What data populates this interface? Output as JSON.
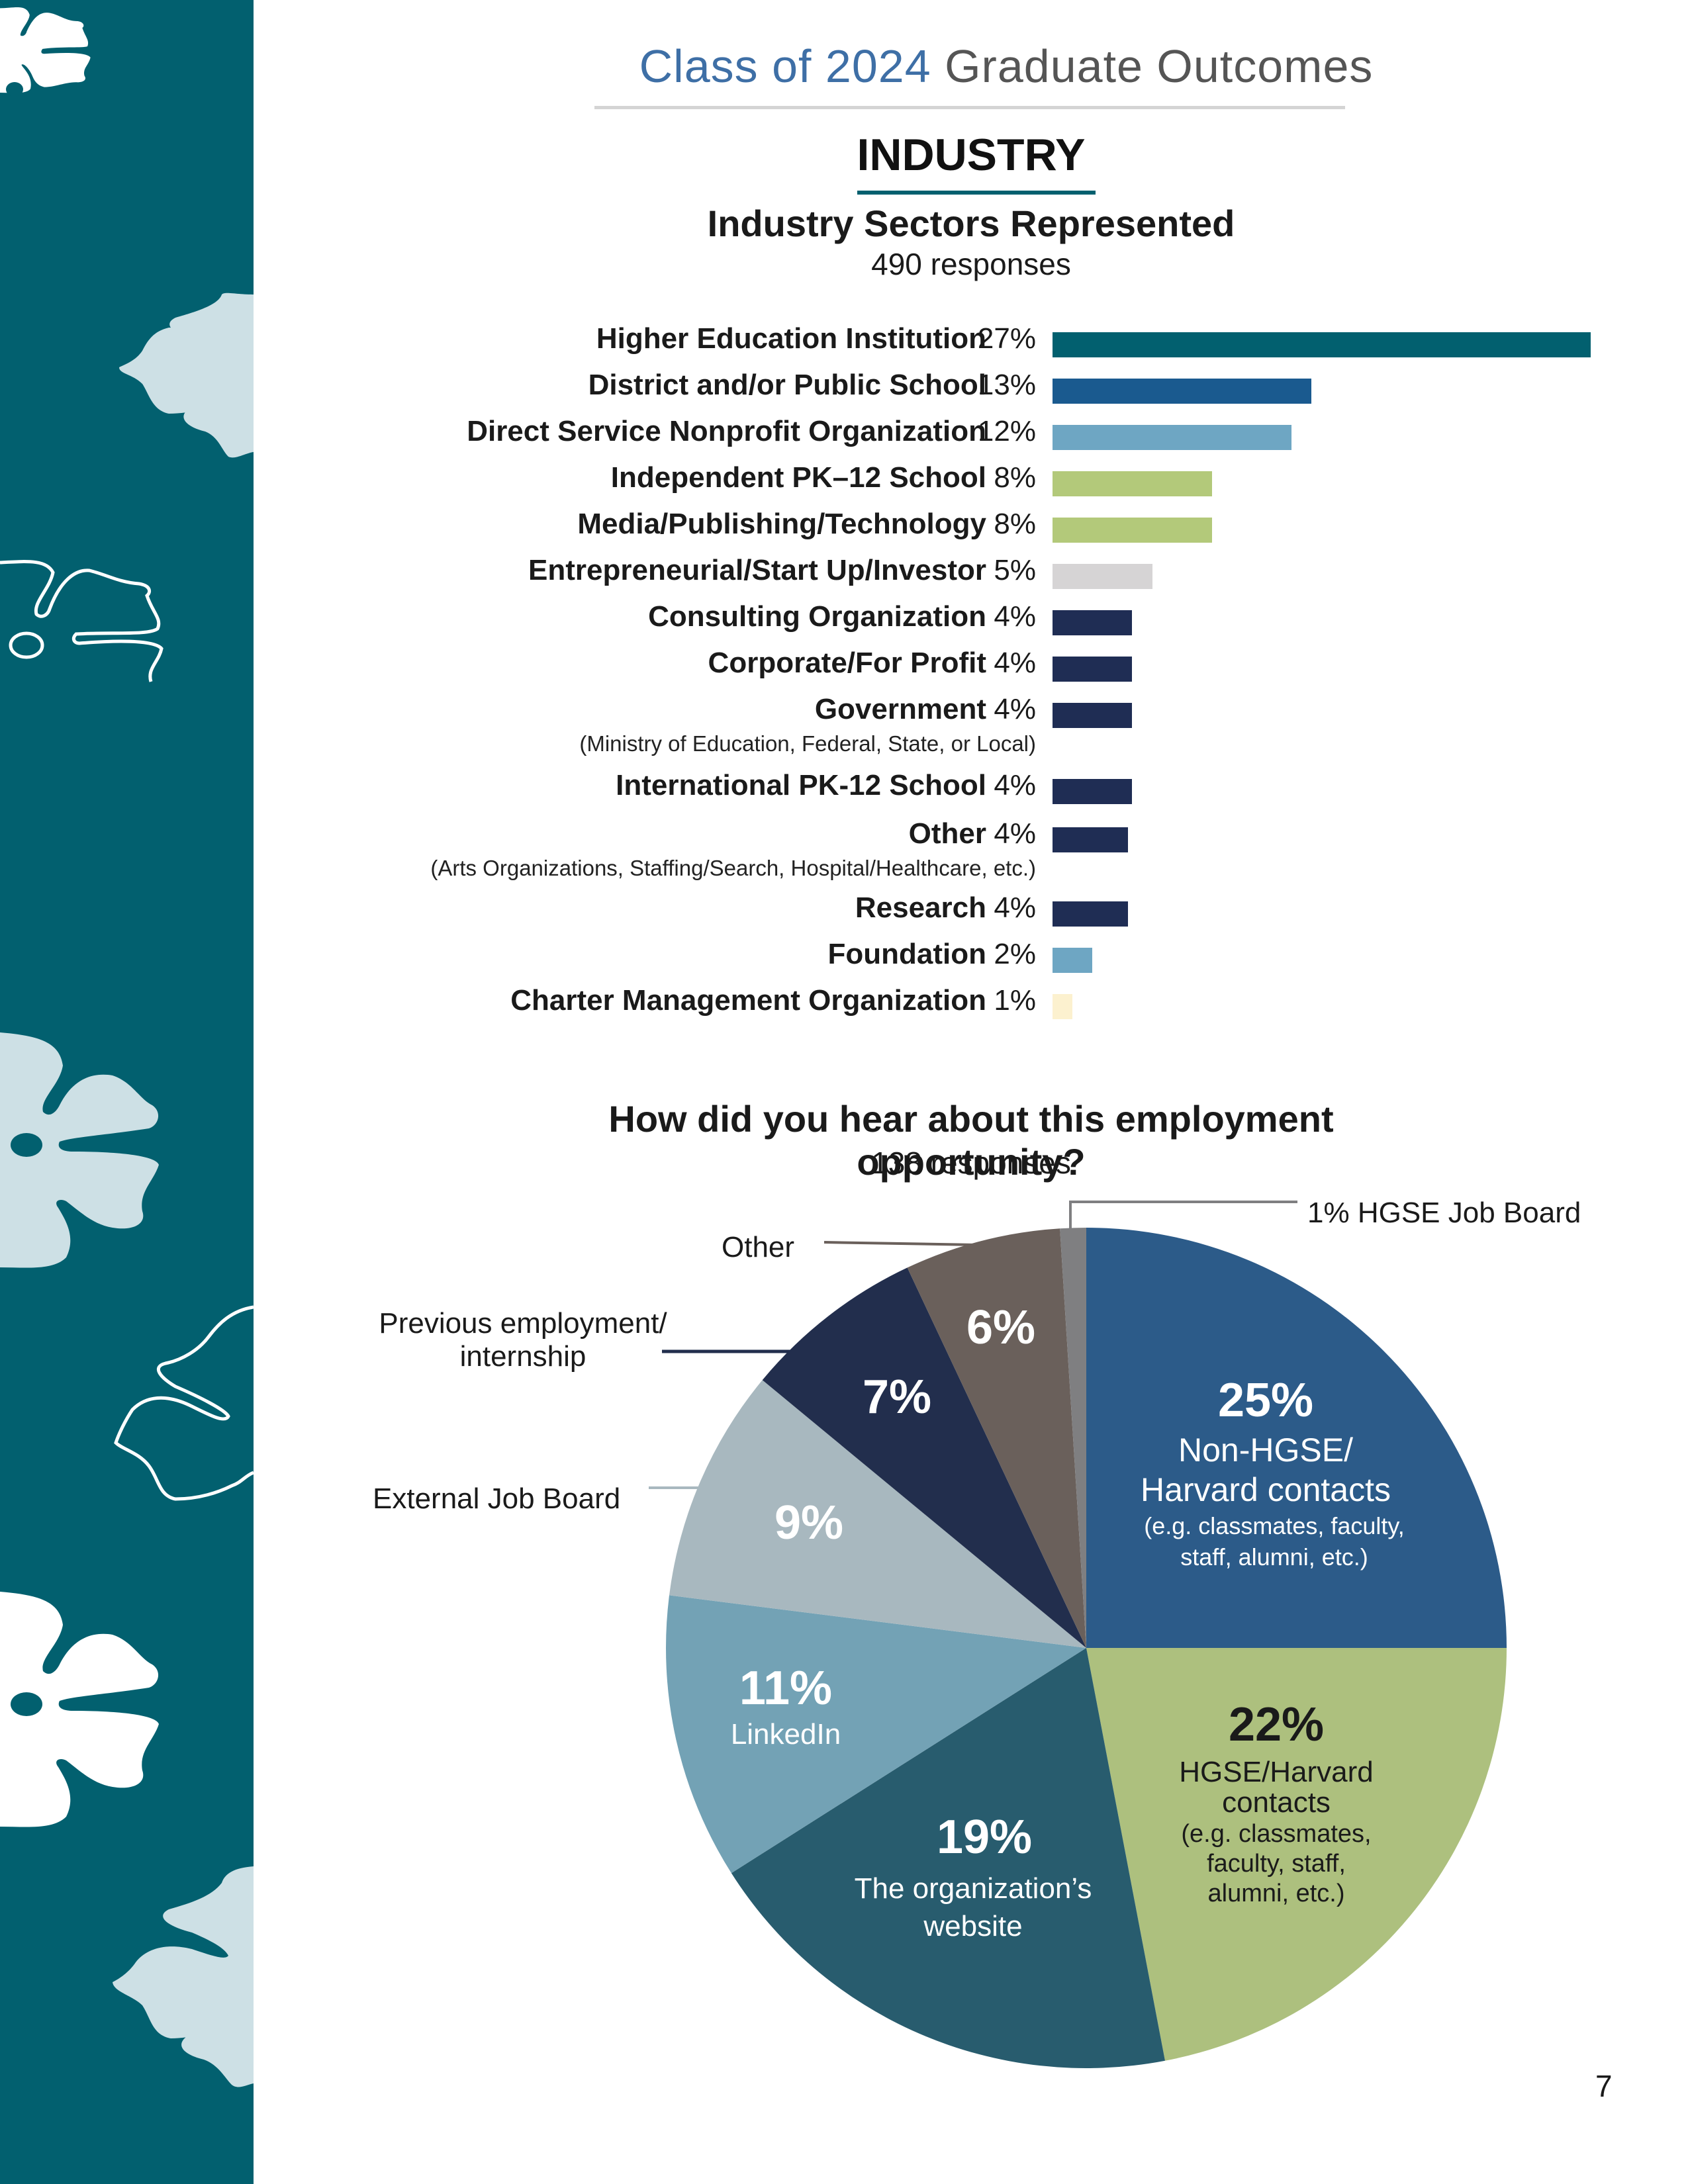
{
  "header": {
    "title_light": "Class of 2024",
    "title_dark": "Graduate Outcomes"
  },
  "section": {
    "title": "INDUSTRY"
  },
  "page_number": "7",
  "colors": {
    "teal": "#02606f",
    "light_blue_decor": "#cde0e5",
    "header_blue": "#3e6fa6"
  },
  "chart_data": [
    {
      "type": "bar",
      "orientation": "horizontal",
      "title": "Industry Sectors Represented",
      "subtitle": "490 responses",
      "xlabel": "",
      "ylabel": "",
      "xlim": [
        0,
        27
      ],
      "grid": false,
      "categories": [
        {
          "label": "Higher Education Institution",
          "value": 27,
          "display": "27%",
          "color": "#02606f",
          "note": ""
        },
        {
          "label": "District and/or Public School",
          "value": 13,
          "display": "13%",
          "color": "#1a5a8f",
          "note": ""
        },
        {
          "label": "Direct Service Nonprofit Organization",
          "value": 12,
          "display": "12%",
          "color": "#6ea6c3",
          "note": ""
        },
        {
          "label": "Independent PK–12 School",
          "value": 8,
          "display": "8%",
          "color": "#b3c97a",
          "note": ""
        },
        {
          "label": "Media/Publishing/Technology",
          "value": 8,
          "display": "8%",
          "color": "#b3c97a",
          "note": ""
        },
        {
          "label": "Entrepreneurial/Start Up/Investor",
          "value": 5,
          "display": "5%",
          "color": "#d6d4d5",
          "note": ""
        },
        {
          "label": "Consulting Organization",
          "value": 4,
          "display": "4%",
          "color": "#1f2d54",
          "note": ""
        },
        {
          "label": "Corporate/For Profit",
          "value": 4,
          "display": "4%",
          "color": "#1f2d54",
          "note": ""
        },
        {
          "label": "Government",
          "value": 4,
          "display": "4%",
          "color": "#1f2d54",
          "note": "(Ministry of Education, Federal, State, or Local)"
        },
        {
          "label": "International PK-12 School",
          "value": 4,
          "display": "4%",
          "color": "#1f2d54",
          "note": ""
        },
        {
          "label": "Other",
          "value": 3.8,
          "display": "4%",
          "color": "#1f2d54",
          "note": "(Arts Organizations, Staffing/Search, Hospital/Healthcare, etc.)"
        },
        {
          "label": "Research",
          "value": 3.8,
          "display": "4%",
          "color": "#1f2d54",
          "note": ""
        },
        {
          "label": "Foundation",
          "value": 2,
          "display": "2%",
          "color": "#6ea6c3",
          "note": ""
        },
        {
          "label": "Charter Management Organization",
          "value": 1,
          "display": "1%",
          "color": "#fcf1cf",
          "note": ""
        }
      ]
    },
    {
      "type": "pie",
      "title": "How did you hear about this employment opportunity?",
      "subtitle": "138 responses",
      "start_angle": "12 o'clock, clockwise",
      "slices": [
        {
          "label": "Non-HGSE/ Harvard contacts",
          "detail": "(e.g. classmates, faculty, staff, alumni, etc.)",
          "value": 25,
          "display": "25%",
          "color": "#2c5b89",
          "text_color": "#ffffff"
        },
        {
          "label": "HGSE/Harvard contacts",
          "detail": "(e.g. classmates, faculty, staff, alumni, etc.)",
          "value": 22,
          "display": "22%",
          "color": "#adc07e",
          "text_color": "#1a1a1a"
        },
        {
          "label": "The organization’s website",
          "detail": "",
          "value": 19,
          "display": "19%",
          "color": "#285c6e",
          "text_color": "#ffffff"
        },
        {
          "label": "LinkedIn",
          "detail": "",
          "value": 11,
          "display": "11%",
          "color": "#73a2b5",
          "text_color": "#ffffff"
        },
        {
          "label": "External Job Board",
          "detail": "",
          "value": 9,
          "display": "9%",
          "color": "#a8b8bf",
          "text_color": "#ffffff"
        },
        {
          "label": "Previous employment/ internship",
          "detail": "",
          "value": 7,
          "display": "7%",
          "color": "#222e4d",
          "text_color": "#ffffff"
        },
        {
          "label": "Other",
          "detail": "",
          "value": 6,
          "display": "6%",
          "color": "#6a605b",
          "text_color": "#ffffff"
        },
        {
          "label": "HGSE Job Board",
          "detail": "",
          "value": 1,
          "display": "1%",
          "color": "#7f7f81",
          "text_color": "#ffffff"
        }
      ],
      "callouts": {
        "hgse_job_board": "1% HGSE Job Board",
        "other": "Other",
        "previous_line1": "Previous employment/",
        "previous_line2": "internship",
        "external": "External Job Board"
      },
      "inside_labels": {
        "s25_pct": "25%",
        "s25_l1": "Non-HGSE/",
        "s25_l2": "Harvard contacts",
        "s25_l3": "(e.g. classmates, faculty,",
        "s25_l4": "staff, alumni, etc.)",
        "s22_pct": "22%",
        "s22_l1": "HGSE/Harvard",
        "s22_l2": "contacts",
        "s22_l3": "(e.g. classmates,",
        "s22_l4": "faculty, staff,",
        "s22_l5": "alumni, etc.)",
        "s19_pct": "19%",
        "s19_l1": "The organization’s",
        "s19_l2": "website",
        "s11_pct": "11%",
        "s11_l1": "LinkedIn",
        "s9_pct": "9%",
        "s7_pct": "7%",
        "s6_pct": "6%"
      }
    }
  ]
}
